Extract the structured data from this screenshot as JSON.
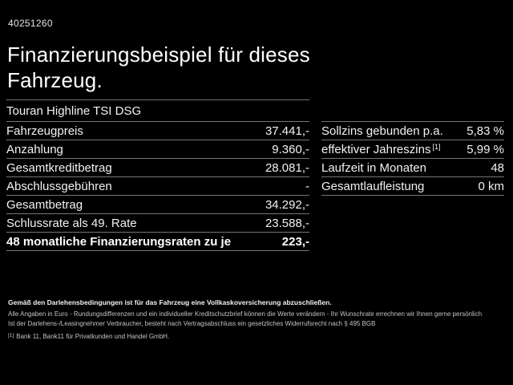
{
  "header": {
    "reference_number": "40251260",
    "title_line1": "Finanzierungsbeispiel für dieses",
    "title_line2": "Fahrzeug."
  },
  "left_table": {
    "vehicle_name": "Touran Highline TSI DSG",
    "rows": [
      {
        "label": "Fahrzeugpreis",
        "value": "37.441,-"
      },
      {
        "label": "Anzahlung",
        "value": "9.360,-"
      },
      {
        "label": "Gesamtkreditbetrag",
        "value": "28.081,-"
      },
      {
        "label": "Abschlussgebühren",
        "value": "-"
      },
      {
        "label": "Gesamtbetrag",
        "value": "34.292,-"
      },
      {
        "label": "Schlussrate als 49. Rate",
        "value": "23.588,-"
      },
      {
        "label": "48 monatliche Finanzierungsraten zu je",
        "value": "223,-"
      }
    ]
  },
  "right_table": {
    "rows": [
      {
        "label": "Sollzins gebunden p.a.",
        "value": "5,83 %"
      },
      {
        "label": "effektiver Jahreszins",
        "sup": "[1]",
        "value": "5,99 %"
      },
      {
        "label": "Laufzeit in Monaten",
        "value": "48"
      },
      {
        "label": "Gesamtlaufleistung",
        "value": "0 km"
      }
    ]
  },
  "footnotes": {
    "insurance_note": "Gemäß den Darlehensbedingungen ist für das Fahrzeug eine Vollkaskoversicherung abzuschließen.",
    "disclaimer_note": "Alle Angaben in Euro - Rundungsdifferenzen und ein individueller Kreditschutzbrief können die Werte verändern - Ihr Wunschrate errechnen wir Ihnen gerne persönlich",
    "withdrawal_note": "Ist der Darlehens-/Leasingnehmer Verbraucher, besteht nach Vertragsabschluss ein gesetzliches Widerrufsrecht nach § 495 BGB",
    "bank_footnote_marker": "[1]",
    "bank_footnote_text": "Bank 11, Bank11 für Privatkunden und Handel GmbH."
  }
}
